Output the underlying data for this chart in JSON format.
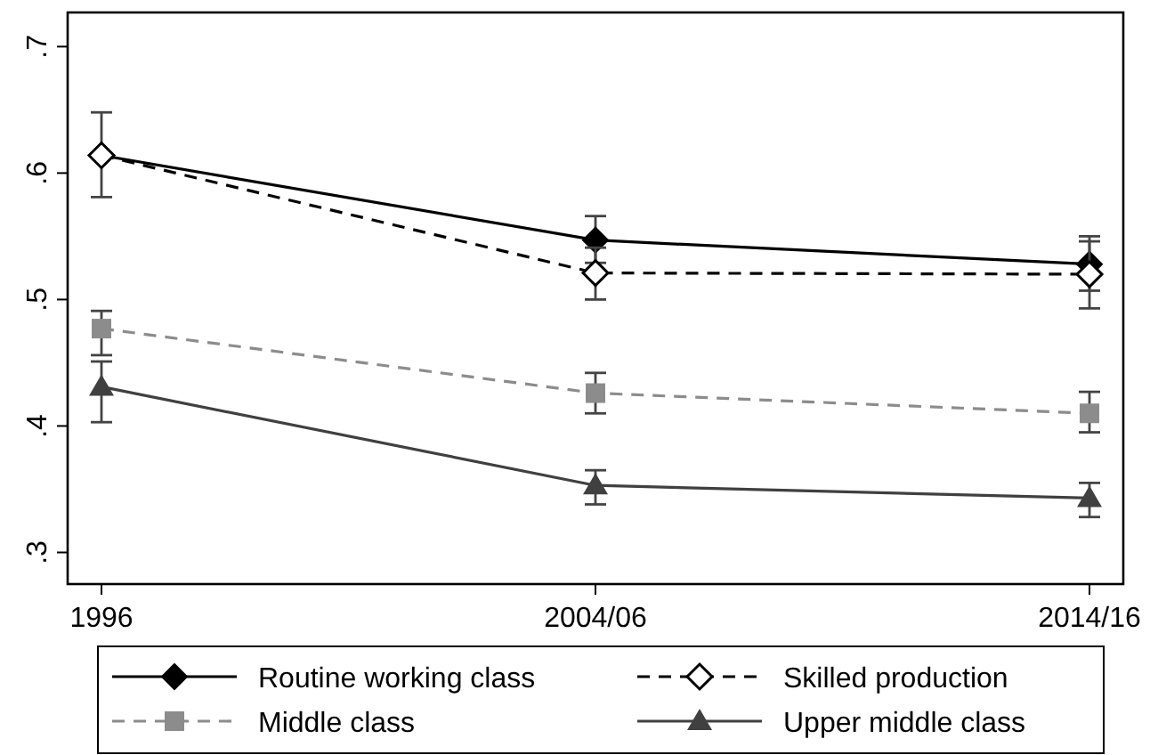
{
  "chart_data": {
    "type": "line",
    "categories": [
      "1996",
      "2004/06",
      "2014/16"
    ],
    "series": [
      {
        "name": "Routine working class",
        "color": "#000000",
        "marker": "diamond",
        "line_style": "solid",
        "values": [
          0.614,
          0.547,
          0.528
        ],
        "errors": [
          null,
          [
            0.529,
            0.566
          ],
          [
            0.507,
            0.55
          ]
        ]
      },
      {
        "name": "Skilled production",
        "color": "#000000",
        "marker": "diamond-open",
        "line_style": "dashed",
        "values": [
          0.614,
          0.521,
          0.52
        ],
        "errors": [
          [
            0.581,
            0.648
          ],
          [
            0.5,
            0.541
          ],
          [
            0.493,
            0.546
          ]
        ]
      },
      {
        "name": "Middle class",
        "color": "#8c8c8c",
        "marker": "square",
        "line_style": "dashed",
        "values": [
          0.477,
          0.426,
          0.41
        ],
        "errors": [
          [
            0.456,
            0.491
          ],
          [
            0.41,
            0.442
          ],
          [
            0.395,
            0.427
          ]
        ]
      },
      {
        "name": "Upper middle class",
        "color": "#404040",
        "marker": "triangle",
        "line_style": "solid",
        "values": [
          0.431,
          0.353,
          0.343
        ],
        "errors": [
          [
            0.403,
            0.451
          ],
          [
            0.338,
            0.365
          ],
          [
            0.328,
            0.355
          ]
        ]
      }
    ],
    "ylim": [
      0.275,
      0.727
    ],
    "yticks": [
      {
        "value": 0.3,
        "label": ".3"
      },
      {
        "value": 0.4,
        "label": ".4"
      },
      {
        "value": 0.5,
        "label": ".5"
      },
      {
        "value": 0.6,
        "label": ".6"
      },
      {
        "value": 0.7,
        "label": ".7"
      }
    ],
    "legend": "bottom"
  }
}
